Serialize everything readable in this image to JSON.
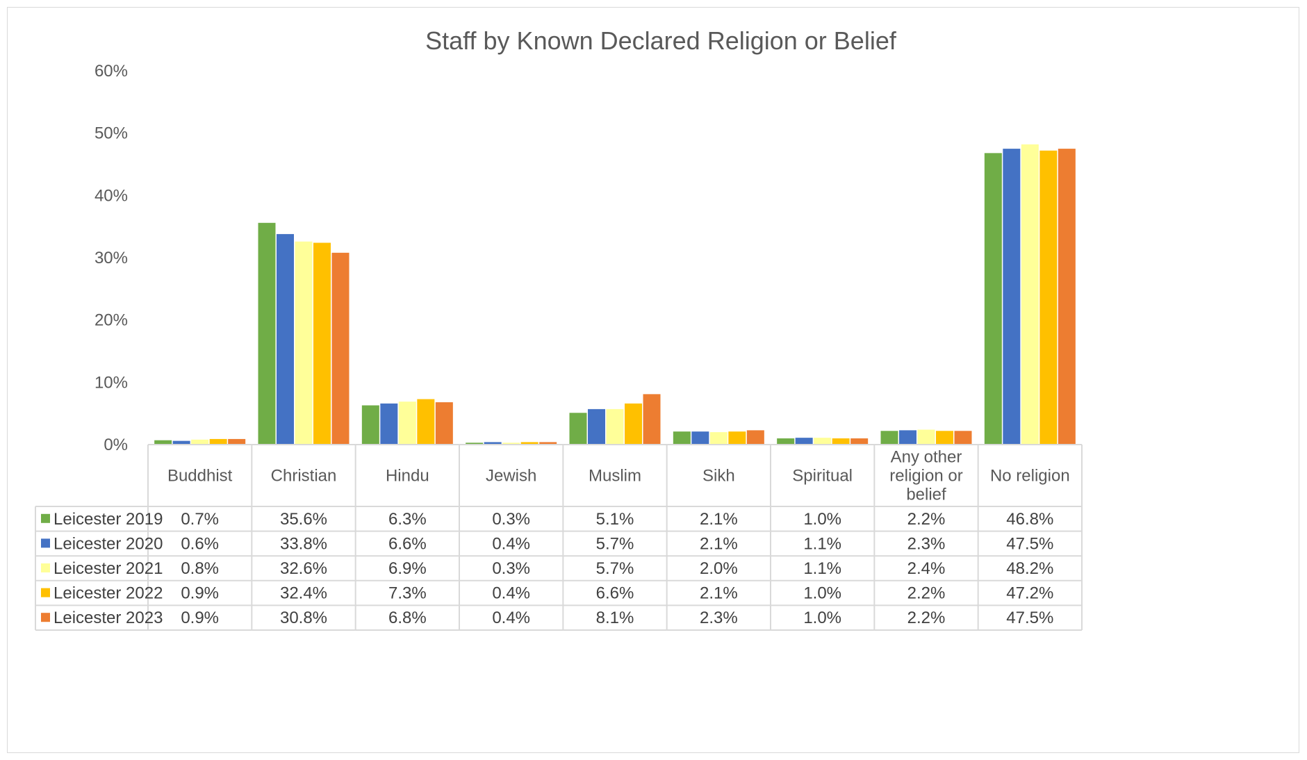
{
  "chart_data": {
    "type": "bar",
    "title": "Staff by Known Declared Religion or Belief",
    "xlabel": "",
    "ylabel": "",
    "ylim": [
      0,
      60
    ],
    "y_ticks": [
      "0%",
      "10%",
      "20%",
      "30%",
      "40%",
      "50%",
      "60%"
    ],
    "y_tick_values": [
      0,
      10,
      20,
      30,
      40,
      50,
      60
    ],
    "grid": false,
    "legend": "data-table",
    "categories": [
      "Buddhist",
      "Christian",
      "Hindu",
      "Jewish",
      "Muslim",
      "Sikh",
      "Spiritual",
      "Any other religion or belief",
      "No religion"
    ],
    "category_lines": [
      [
        "Buddhist"
      ],
      [
        "Christian"
      ],
      [
        "Hindu"
      ],
      [
        "Jewish"
      ],
      [
        "Muslim"
      ],
      [
        "Sikh"
      ],
      [
        "Spiritual"
      ],
      [
        "Any other",
        "religion or",
        "belief"
      ],
      [
        "No religion"
      ]
    ],
    "series": [
      {
        "name": "Leicester 2019",
        "color": "#70AD47",
        "values": [
          0.7,
          35.6,
          6.3,
          0.3,
          5.1,
          2.1,
          1.0,
          2.2,
          46.8
        ],
        "labels": [
          "0.7%",
          "35.6%",
          "6.3%",
          "0.3%",
          "5.1%",
          "2.1%",
          "1.0%",
          "2.2%",
          "46.8%"
        ]
      },
      {
        "name": "Leicester 2020",
        "color": "#4472C4",
        "values": [
          0.6,
          33.8,
          6.6,
          0.4,
          5.7,
          2.1,
          1.1,
          2.3,
          47.5
        ],
        "labels": [
          "0.6%",
          "33.8%",
          "6.6%",
          "0.4%",
          "5.7%",
          "2.1%",
          "1.1%",
          "2.3%",
          "47.5%"
        ]
      },
      {
        "name": "Leicester 2021",
        "color": "#FFFF99",
        "values": [
          0.8,
          32.6,
          6.9,
          0.3,
          5.7,
          2.0,
          1.1,
          2.4,
          48.2
        ],
        "labels": [
          "0.8%",
          "32.6%",
          "6.9%",
          "0.3%",
          "5.7%",
          "2.0%",
          "1.1%",
          "2.4%",
          "48.2%"
        ]
      },
      {
        "name": "Leicester 2022",
        "color": "#FFC000",
        "values": [
          0.9,
          32.4,
          7.3,
          0.4,
          6.6,
          2.1,
          1.0,
          2.2,
          47.2
        ],
        "labels": [
          "0.9%",
          "32.4%",
          "7.3%",
          "0.4%",
          "6.6%",
          "2.1%",
          "1.0%",
          "2.2%",
          "47.2%"
        ]
      },
      {
        "name": "Leicester 2023",
        "color": "#ED7D31",
        "values": [
          0.9,
          30.8,
          6.8,
          0.4,
          8.1,
          2.3,
          1.0,
          2.2,
          47.5
        ],
        "labels": [
          "0.9%",
          "30.8%",
          "6.8%",
          "0.4%",
          "8.1%",
          "2.3%",
          "1.0%",
          "2.2%",
          "47.5%"
        ]
      }
    ]
  }
}
